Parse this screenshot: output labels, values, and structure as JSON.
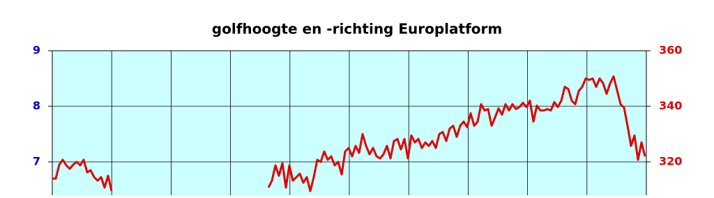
{
  "chart_data": {
    "type": "line",
    "title": "golfhoogte en -richting Europlatform",
    "ylim": [
      6.4,
      9
    ],
    "yticks": [
      7,
      8,
      9
    ],
    "ytick_color": "#0000cc",
    "y2lim": [
      308,
      360
    ],
    "y2ticks": [
      320,
      340,
      360
    ],
    "y2tick_color": "#e00000",
    "grid": true,
    "background": "#ccffff",
    "series": [
      {
        "color": "#e00000",
        "axis": "y2",
        "values": [
          314,
          314,
          319,
          320.75,
          318.75,
          317.5,
          319,
          320,
          318.75,
          320.75,
          316.25,
          317,
          314.5,
          313.25,
          314.5,
          310.75,
          315,
          309.5,
          null,
          null,
          null,
          null,
          null,
          null,
          null,
          null,
          null,
          null,
          null,
          null,
          null,
          null,
          null,
          null,
          null,
          null,
          null,
          null,
          null,
          null,
          null,
          null,
          null,
          null,
          null,
          null,
          null,
          null,
          null,
          null,
          null,
          null,
          null,
          null,
          null,
          null,
          null,
          null,
          null,
          null,
          null,
          null,
          310.75,
          313.25,
          318.75,
          315,
          319.5,
          310.75,
          318.75,
          313.25,
          314.5,
          315.75,
          312.5,
          314.5,
          309.5,
          314.5,
          320.75,
          320,
          323.75,
          320.75,
          322,
          318.75,
          320,
          315.5,
          323.75,
          325,
          322,
          325.75,
          323.25,
          330,
          325.75,
          322.75,
          325,
          322,
          321.25,
          322.75,
          325.75,
          321.25,
          327.5,
          328.25,
          324.5,
          328.25,
          321.25,
          329.5,
          327,
          328.25,
          325,
          327,
          325.75,
          327.5,
          325,
          330,
          330.75,
          327.5,
          332,
          333,
          329,
          333,
          334.5,
          332.5,
          337.5,
          333,
          334.5,
          340.75,
          338.5,
          339,
          333,
          336,
          339.25,
          337,
          340.75,
          338.5,
          340.75,
          339,
          339.75,
          341.25,
          339.75,
          342,
          334.5,
          340.25,
          338.5,
          338.5,
          339,
          338.5,
          341.5,
          339.75,
          342,
          347,
          346.25,
          342,
          340.75,
          345.5,
          347,
          350,
          349.5,
          350,
          347,
          350,
          348.25,
          344.5,
          348.25,
          350.75,
          345.75,
          340.75,
          339.5,
          333,
          325.75,
          329.5,
          320.75,
          327,
          322
        ]
      }
    ]
  }
}
